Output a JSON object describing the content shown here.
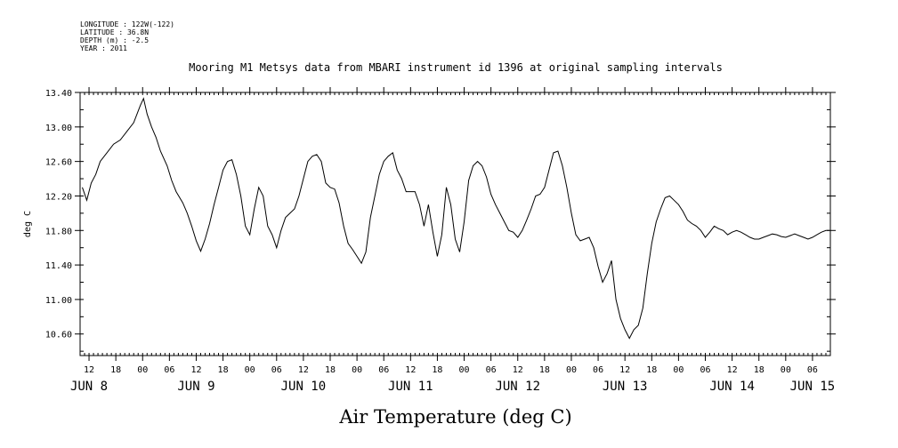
{
  "meta": {
    "longitude": "LONGITUDE : 122W(-122)",
    "latitude": "LATITUDE : 36.8N",
    "depth": "DEPTH (m) : -2.5",
    "year": "YEAR : 2011"
  },
  "chart_data": {
    "type": "line",
    "title": "Mooring M1 Metsys data from MBARI instrument id 1396 at original sampling intervals",
    "xlabel": "Air Temperature (deg C)",
    "ylabel": "deg C",
    "ylim": [
      10.35,
      13.4
    ],
    "yticks": [
      13.4,
      13.0,
      12.6,
      12.2,
      11.8,
      11.4,
      11.0,
      10.6
    ],
    "ytick_labels": [
      "13.40",
      "13.00",
      "12.60",
      "12.20",
      "11.80",
      "11.40",
      "11.00",
      "10.60"
    ],
    "xlim_hours": [
      10,
      178
    ],
    "hour_ticks": [
      {
        "h": 12,
        "label": "12"
      },
      {
        "h": 18,
        "label": "18"
      },
      {
        "h": 24,
        "label": "00"
      },
      {
        "h": 30,
        "label": "06"
      },
      {
        "h": 36,
        "label": "12"
      },
      {
        "h": 42,
        "label": "18"
      },
      {
        "h": 48,
        "label": "00"
      },
      {
        "h": 54,
        "label": "06"
      },
      {
        "h": 60,
        "label": "12"
      },
      {
        "h": 66,
        "label": "18"
      },
      {
        "h": 72,
        "label": "00"
      },
      {
        "h": 78,
        "label": "06"
      },
      {
        "h": 84,
        "label": "12"
      },
      {
        "h": 90,
        "label": "18"
      },
      {
        "h": 96,
        "label": "00"
      },
      {
        "h": 102,
        "label": "06"
      },
      {
        "h": 108,
        "label": "12"
      },
      {
        "h": 114,
        "label": "18"
      },
      {
        "h": 120,
        "label": "00"
      },
      {
        "h": 126,
        "label": "06"
      },
      {
        "h": 132,
        "label": "12"
      },
      {
        "h": 138,
        "label": "18"
      },
      {
        "h": 144,
        "label": "00"
      },
      {
        "h": 150,
        "label": "06"
      },
      {
        "h": 156,
        "label": "12"
      },
      {
        "h": 162,
        "label": "18"
      },
      {
        "h": 168,
        "label": "00"
      },
      {
        "h": 174,
        "label": "06"
      }
    ],
    "day_ticks": [
      {
        "h": 12,
        "label": "JUN  8"
      },
      {
        "h": 36,
        "label": "JUN  9"
      },
      {
        "h": 60,
        "label": "JUN 10"
      },
      {
        "h": 84,
        "label": "JUN 11"
      },
      {
        "h": 108,
        "label": "JUN 12"
      },
      {
        "h": 132,
        "label": "JUN 13"
      },
      {
        "h": 156,
        "label": "JUN 14"
      },
      {
        "h": 174,
        "label": "JUN 15"
      }
    ],
    "x_units": "hours since 2011-06-08 00:00",
    "series": [
      {
        "color": "#000000",
        "points": [
          [
            10.5,
            12.3
          ],
          [
            11.5,
            12.15
          ],
          [
            12.5,
            12.35
          ],
          [
            13.5,
            12.45
          ],
          [
            14.5,
            12.6
          ],
          [
            16,
            12.7
          ],
          [
            17.5,
            12.8
          ],
          [
            19,
            12.85
          ],
          [
            20.5,
            12.95
          ],
          [
            22,
            13.05
          ],
          [
            23.5,
            13.25
          ],
          [
            24.2,
            13.33
          ],
          [
            25,
            13.15
          ],
          [
            26,
            13.0
          ],
          [
            27,
            12.88
          ],
          [
            28,
            12.72
          ],
          [
            29.5,
            12.55
          ],
          [
            30.5,
            12.38
          ],
          [
            31.5,
            12.25
          ],
          [
            33,
            12.12
          ],
          [
            34,
            12.0
          ],
          [
            35,
            11.85
          ],
          [
            36,
            11.68
          ],
          [
            37,
            11.56
          ],
          [
            38,
            11.7
          ],
          [
            39,
            11.88
          ],
          [
            40,
            12.1
          ],
          [
            41,
            12.3
          ],
          [
            42,
            12.5
          ],
          [
            43,
            12.6
          ],
          [
            44,
            12.62
          ],
          [
            45,
            12.45
          ],
          [
            46,
            12.2
          ],
          [
            47,
            11.85
          ],
          [
            48,
            11.75
          ],
          [
            49,
            12.05
          ],
          [
            50,
            12.3
          ],
          [
            51,
            12.2
          ],
          [
            52,
            11.85
          ],
          [
            53,
            11.75
          ],
          [
            54,
            11.6
          ],
          [
            55,
            11.8
          ],
          [
            56,
            11.95
          ],
          [
            57,
            12.0
          ],
          [
            58,
            12.05
          ],
          [
            59,
            12.2
          ],
          [
            60,
            12.4
          ],
          [
            61,
            12.6
          ],
          [
            62,
            12.66
          ],
          [
            63,
            12.68
          ],
          [
            64,
            12.6
          ],
          [
            65,
            12.35
          ],
          [
            66,
            12.3
          ],
          [
            67,
            12.28
          ],
          [
            68,
            12.12
          ],
          [
            69,
            11.85
          ],
          [
            70,
            11.65
          ],
          [
            71,
            11.58
          ],
          [
            72,
            11.5
          ],
          [
            73,
            11.42
          ],
          [
            74,
            11.55
          ],
          [
            75,
            11.95
          ],
          [
            76,
            12.2
          ],
          [
            77,
            12.45
          ],
          [
            78,
            12.6
          ],
          [
            79,
            12.66
          ],
          [
            80,
            12.7
          ],
          [
            81,
            12.5
          ],
          [
            82,
            12.4
          ],
          [
            83,
            12.25
          ],
          [
            84,
            12.25
          ],
          [
            85,
            12.25
          ],
          [
            86,
            12.1
          ],
          [
            87,
            11.85
          ],
          [
            88,
            12.1
          ],
          [
            89,
            11.78
          ],
          [
            90,
            11.5
          ],
          [
            91,
            11.75
          ],
          [
            92,
            12.3
          ],
          [
            93,
            12.1
          ],
          [
            94,
            11.7
          ],
          [
            95,
            11.55
          ],
          [
            96,
            11.9
          ],
          [
            97,
            12.38
          ],
          [
            98,
            12.55
          ],
          [
            99,
            12.6
          ],
          [
            100,
            12.55
          ],
          [
            101,
            12.42
          ],
          [
            102,
            12.22
          ],
          [
            103,
            12.1
          ],
          [
            104,
            12.0
          ],
          [
            105,
            11.9
          ],
          [
            106,
            11.8
          ],
          [
            107,
            11.78
          ],
          [
            108,
            11.72
          ],
          [
            109,
            11.8
          ],
          [
            110,
            11.92
          ],
          [
            111,
            12.05
          ],
          [
            112,
            12.2
          ],
          [
            113,
            12.22
          ],
          [
            114,
            12.3
          ],
          [
            115,
            12.5
          ],
          [
            116,
            12.7
          ],
          [
            117,
            12.72
          ],
          [
            118,
            12.55
          ],
          [
            119,
            12.3
          ],
          [
            120,
            12.0
          ],
          [
            121,
            11.75
          ],
          [
            122,
            11.68
          ],
          [
            123,
            11.7
          ],
          [
            124,
            11.72
          ],
          [
            125,
            11.6
          ],
          [
            126,
            11.38
          ],
          [
            127,
            11.2
          ],
          [
            128,
            11.3
          ],
          [
            129,
            11.45
          ],
          [
            130,
            11.0
          ],
          [
            131,
            10.78
          ],
          [
            132,
            10.65
          ],
          [
            133,
            10.55
          ],
          [
            134,
            10.65
          ],
          [
            135,
            10.7
          ],
          [
            136,
            10.9
          ],
          [
            137,
            11.3
          ],
          [
            138,
            11.65
          ],
          [
            139,
            11.9
          ],
          [
            140,
            12.05
          ],
          [
            141,
            12.18
          ],
          [
            142,
            12.2
          ],
          [
            143,
            12.15
          ],
          [
            144,
            12.1
          ],
          [
            145,
            12.02
          ],
          [
            146,
            11.92
          ],
          [
            147,
            11.88
          ],
          [
            148,
            11.85
          ],
          [
            149,
            11.8
          ],
          [
            150,
            11.72
          ],
          [
            151,
            11.78
          ],
          [
            152,
            11.85
          ],
          [
            153,
            11.82
          ],
          [
            154,
            11.8
          ],
          [
            155,
            11.75
          ],
          [
            156,
            11.78
          ],
          [
            157,
            11.8
          ],
          [
            158,
            11.78
          ],
          [
            159,
            11.75
          ],
          [
            160,
            11.72
          ],
          [
            161,
            11.7
          ],
          [
            162,
            11.7
          ],
          [
            163,
            11.72
          ],
          [
            164,
            11.74
          ],
          [
            165,
            11.76
          ],
          [
            166,
            11.75
          ],
          [
            167,
            11.73
          ],
          [
            168,
            11.72
          ],
          [
            169,
            11.74
          ],
          [
            170,
            11.76
          ],
          [
            171,
            11.74
          ],
          [
            172,
            11.72
          ],
          [
            173,
            11.7
          ],
          [
            174,
            11.72
          ],
          [
            175,
            11.75
          ],
          [
            176,
            11.78
          ],
          [
            177,
            11.8
          ],
          [
            177.8,
            11.8
          ]
        ]
      }
    ]
  }
}
